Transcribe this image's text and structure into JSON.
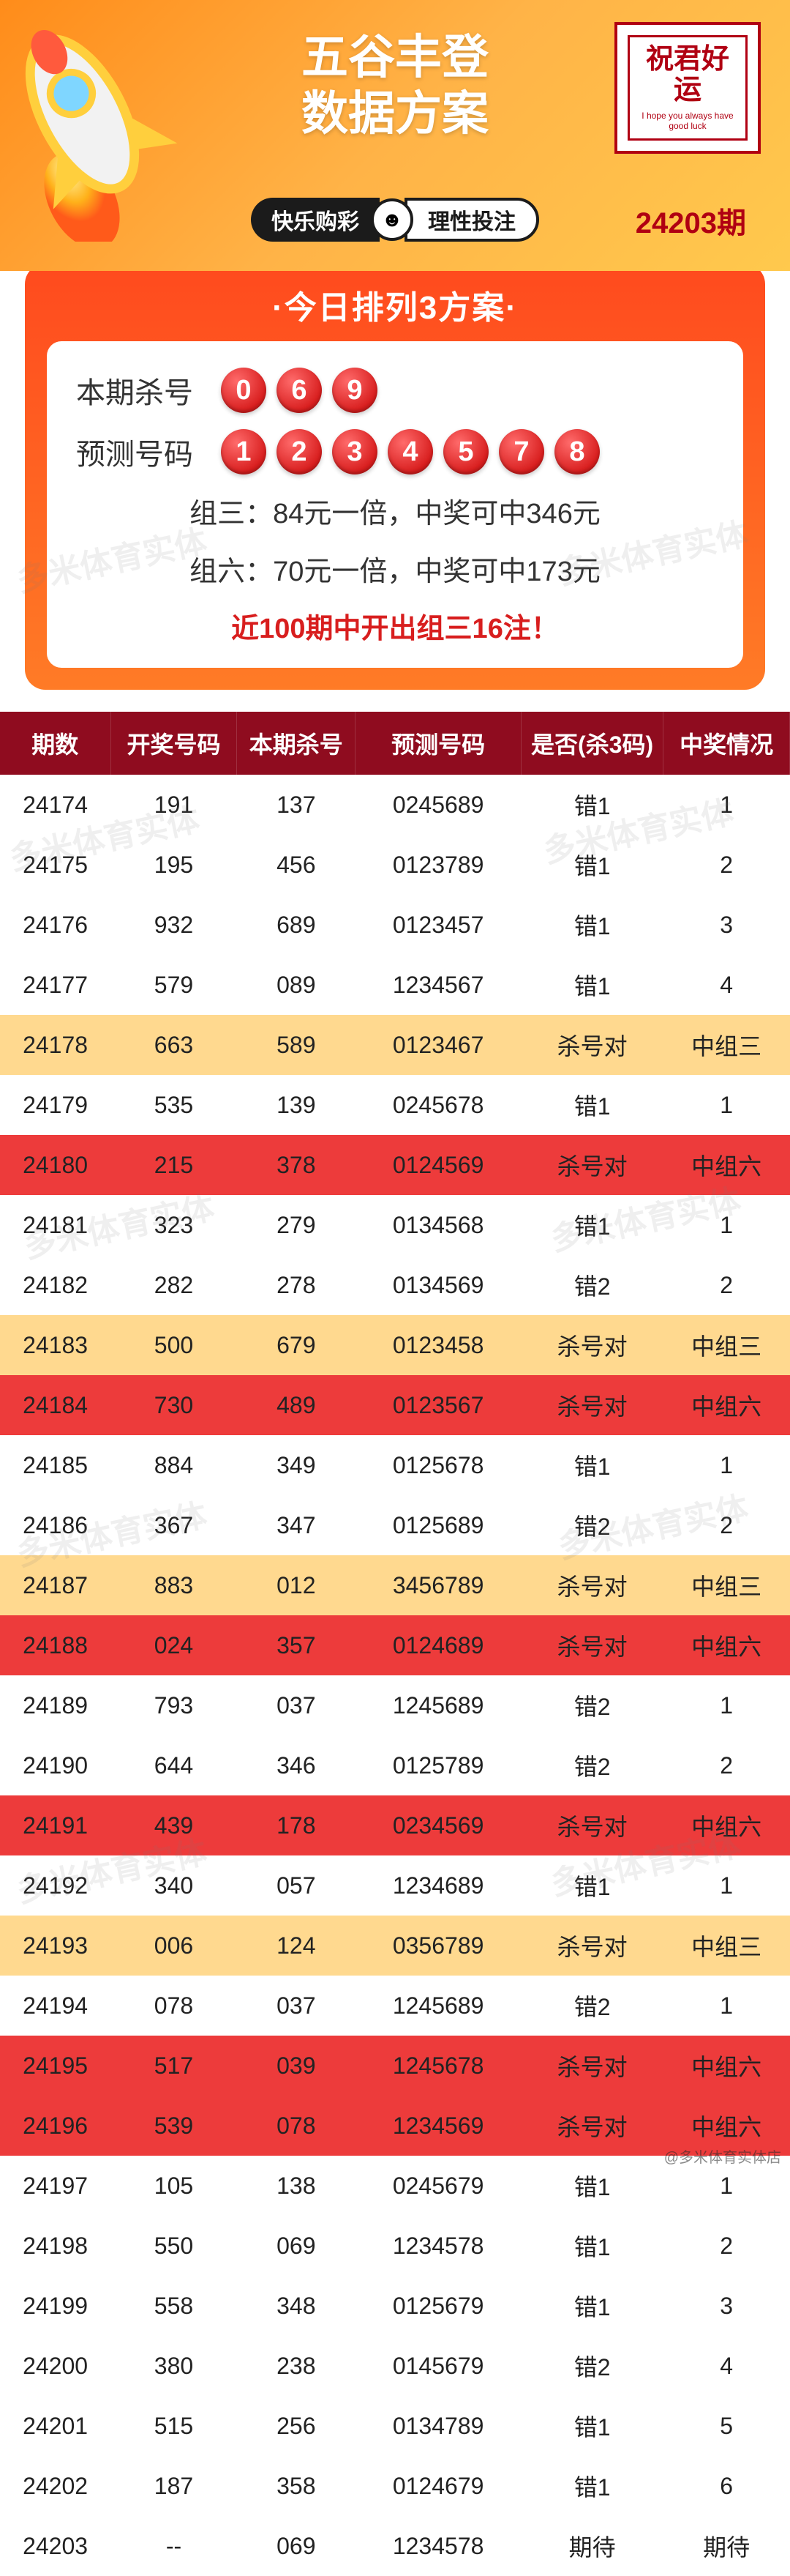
{
  "header": {
    "title_line1": "五谷丰登",
    "title_line2": "数据方案",
    "stamp_main": "祝君好运",
    "stamp_sub": "I hope you always have good luck",
    "pill_left": "快乐购彩",
    "pill_right": "理性投注",
    "issue": "24203期"
  },
  "plan": {
    "section_title": "·今日排列3方案·",
    "kill_label": "本期杀号",
    "kill_numbers": [
      "0",
      "6",
      "9"
    ],
    "predict_label": "预测号码",
    "predict_numbers": [
      "1",
      "2",
      "3",
      "4",
      "5",
      "7",
      "8"
    ],
    "group3_line": "组三：84元一倍，中奖可中346元",
    "group6_line": "组六：70元一倍，中奖可中173元",
    "note": "近100期中开出组三16注！"
  },
  "table": {
    "columns": [
      "期数",
      "开奖号码",
      "本期杀号",
      "预测号码",
      "是否(杀3码)",
      "中奖情况"
    ],
    "col_widths": [
      "14%",
      "16%",
      "15%",
      "21%",
      "18%",
      "16%"
    ],
    "rows": [
      {
        "cells": [
          "24174",
          "191",
          "137",
          "0245689",
          "错1",
          "1"
        ],
        "style": "plain"
      },
      {
        "cells": [
          "24175",
          "195",
          "456",
          "0123789",
          "错1",
          "2"
        ],
        "style": "plain"
      },
      {
        "cells": [
          "24176",
          "932",
          "689",
          "0123457",
          "错1",
          "3"
        ],
        "style": "plain"
      },
      {
        "cells": [
          "24177",
          "579",
          "089",
          "1234567",
          "错1",
          "4"
        ],
        "style": "plain"
      },
      {
        "cells": [
          "24178",
          "663",
          "589",
          "0123467",
          "杀号对",
          "中组三"
        ],
        "style": "yellow"
      },
      {
        "cells": [
          "24179",
          "535",
          "139",
          "0245678",
          "错1",
          "1"
        ],
        "style": "plain"
      },
      {
        "cells": [
          "24180",
          "215",
          "378",
          "0124569",
          "杀号对",
          "中组六"
        ],
        "style": "red"
      },
      {
        "cells": [
          "24181",
          "323",
          "279",
          "0134568",
          "错1",
          "1"
        ],
        "style": "plain"
      },
      {
        "cells": [
          "24182",
          "282",
          "278",
          "0134569",
          "错2",
          "2"
        ],
        "style": "plain"
      },
      {
        "cells": [
          "24183",
          "500",
          "679",
          "0123458",
          "杀号对",
          "中组三"
        ],
        "style": "yellow"
      },
      {
        "cells": [
          "24184",
          "730",
          "489",
          "0123567",
          "杀号对",
          "中组六"
        ],
        "style": "red"
      },
      {
        "cells": [
          "24185",
          "884",
          "349",
          "0125678",
          "错1",
          "1"
        ],
        "style": "plain"
      },
      {
        "cells": [
          "24186",
          "367",
          "347",
          "0125689",
          "错2",
          "2"
        ],
        "style": "plain"
      },
      {
        "cells": [
          "24187",
          "883",
          "012",
          "3456789",
          "杀号对",
          "中组三"
        ],
        "style": "yellow"
      },
      {
        "cells": [
          "24188",
          "024",
          "357",
          "0124689",
          "杀号对",
          "中组六"
        ],
        "style": "red"
      },
      {
        "cells": [
          "24189",
          "793",
          "037",
          "1245689",
          "错2",
          "1"
        ],
        "style": "plain"
      },
      {
        "cells": [
          "24190",
          "644",
          "346",
          "0125789",
          "错2",
          "2"
        ],
        "style": "plain"
      },
      {
        "cells": [
          "24191",
          "439",
          "178",
          "0234569",
          "杀号对",
          "中组六"
        ],
        "style": "red"
      },
      {
        "cells": [
          "24192",
          "340",
          "057",
          "1234689",
          "错1",
          "1"
        ],
        "style": "plain"
      },
      {
        "cells": [
          "24193",
          "006",
          "124",
          "0356789",
          "杀号对",
          "中组三"
        ],
        "style": "yellow"
      },
      {
        "cells": [
          "24194",
          "078",
          "037",
          "1245689",
          "错2",
          "1"
        ],
        "style": "plain"
      },
      {
        "cells": [
          "24195",
          "517",
          "039",
          "1245678",
          "杀号对",
          "中组六"
        ],
        "style": "red"
      },
      {
        "cells": [
          "24196",
          "539",
          "078",
          "1234569",
          "杀号对",
          "中组六"
        ],
        "style": "red"
      },
      {
        "cells": [
          "24197",
          "105",
          "138",
          "0245679",
          "错1",
          "1"
        ],
        "style": "plain"
      },
      {
        "cells": [
          "24198",
          "550",
          "069",
          "1234578",
          "错1",
          "2"
        ],
        "style": "plain"
      },
      {
        "cells": [
          "24199",
          "558",
          "348",
          "0125679",
          "错1",
          "3"
        ],
        "style": "plain"
      },
      {
        "cells": [
          "24200",
          "380",
          "238",
          "0145679",
          "错2",
          "4"
        ],
        "style": "plain"
      },
      {
        "cells": [
          "24201",
          "515",
          "256",
          "0134789",
          "错1",
          "5"
        ],
        "style": "plain"
      },
      {
        "cells": [
          "24202",
          "187",
          "358",
          "0124679",
          "错1",
          "6"
        ],
        "style": "plain"
      },
      {
        "cells": [
          "24203",
          "--",
          "069",
          "1234578",
          "期待",
          "期待"
        ],
        "style": "plain"
      }
    ]
  },
  "watermark_text": "多米体育实体",
  "weibo_id": "@多米体育实体店"
}
